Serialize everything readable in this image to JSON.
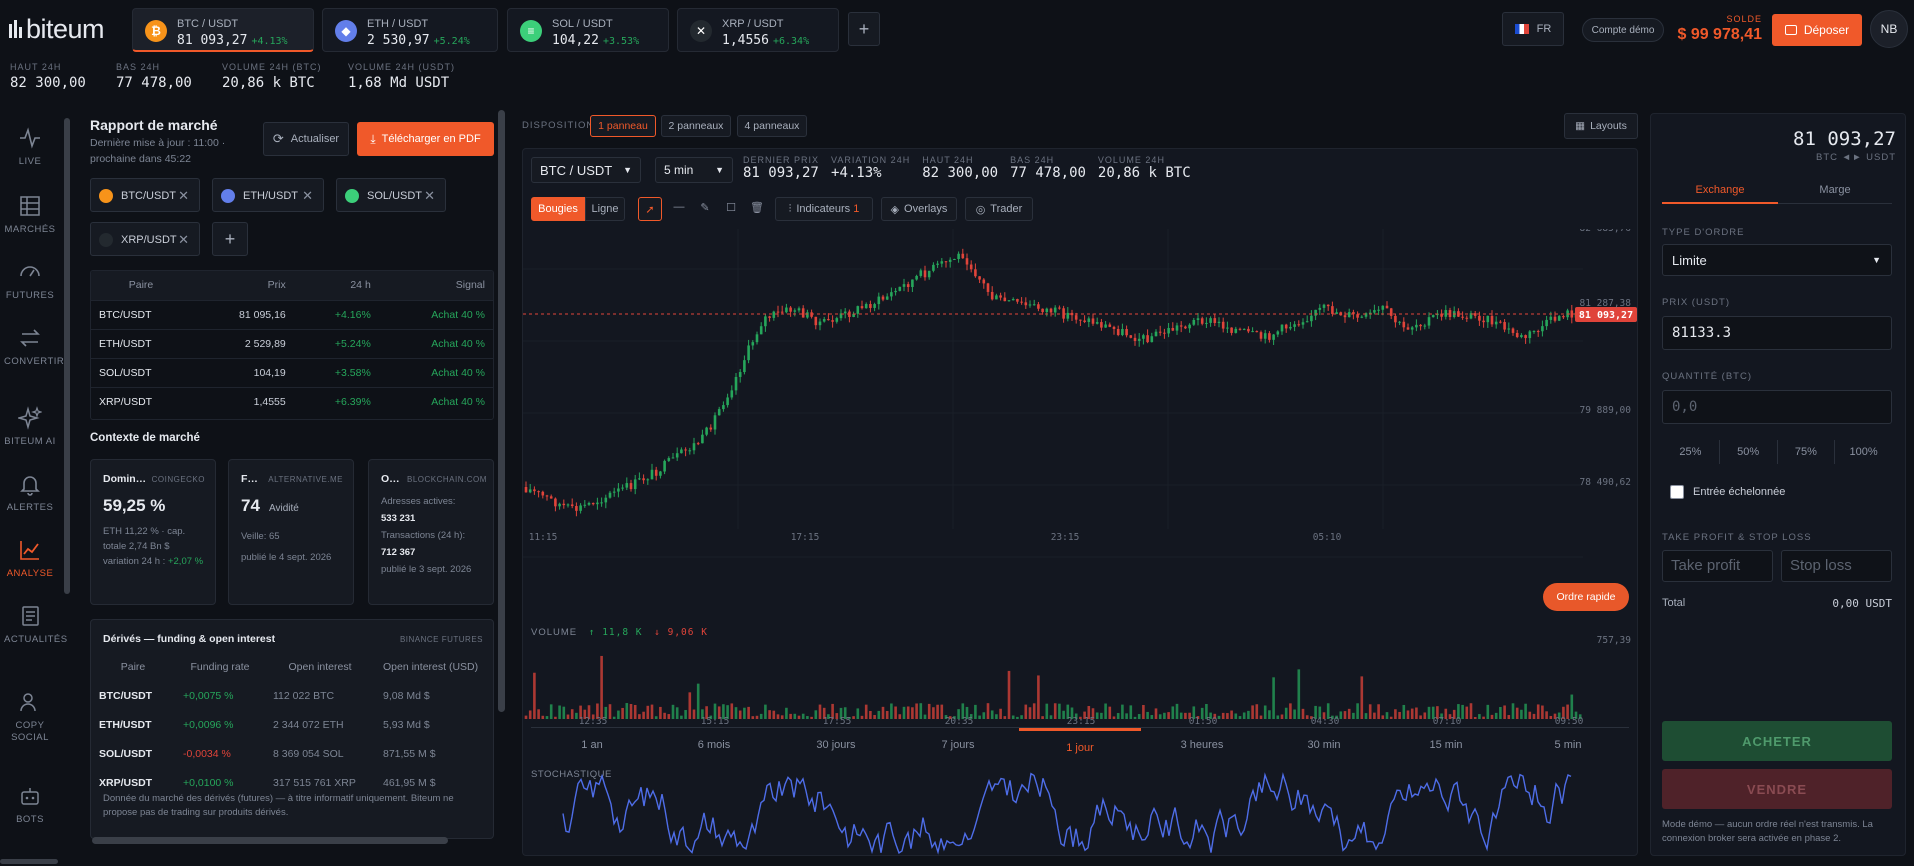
{
  "brand": {
    "logo": "biteum",
    "accent": "#f0592a"
  },
  "tickers": [
    {
      "pair": "BTC / USDT",
      "price": "81 093,27",
      "change": "+4.13%",
      "icon": "bitcoin-icon",
      "color": "#f7931a",
      "glyph": "₿"
    },
    {
      "pair": "ETH / USDT",
      "price": "2 530,97",
      "change": "+5.24%",
      "icon": "ethereum-icon",
      "color": "#627eea",
      "glyph": "◆"
    },
    {
      "pair": "SOL / USDT",
      "price": "104,22",
      "change": "+3.53%",
      "icon": "solana-icon",
      "color": "#3ccf7a",
      "glyph": "≡"
    },
    {
      "pair": "XRP / USDT",
      "price": "1,4556",
      "change": "+6.34%",
      "icon": "xrp-icon",
      "color": "#23292f",
      "glyph": "✕"
    }
  ],
  "header": {
    "lang": "FR",
    "demo_label": "Compte démo",
    "balance_label": "SOLDE",
    "balance": "$ 99 978,41",
    "deposit_label": "Déposer",
    "avatar": "NB"
  },
  "stats": [
    {
      "label": "HAUT 24H",
      "value": "82 300,00"
    },
    {
      "label": "BAS 24H",
      "value": "77 478,00"
    },
    {
      "label": "VOLUME 24H (BTC)",
      "value": "20,86 k BTC"
    },
    {
      "label": "VOLUME 24H (USDT)",
      "value": "1,68 Md USDT"
    }
  ],
  "nav": [
    {
      "label": "LIVE",
      "icon": "pulse-icon"
    },
    {
      "label": "MARCHÉS",
      "icon": "grid-icon"
    },
    {
      "label": "FUTURES",
      "icon": "gauge-icon"
    },
    {
      "label": "CONVERTIR",
      "icon": "swap-icon"
    },
    {
      "label": "BITEUM AI",
      "icon": "sparkle-icon"
    },
    {
      "label": "ALERTES",
      "icon": "bell-icon"
    },
    {
      "label": "ANALYSE",
      "icon": "chart-line-icon"
    },
    {
      "label": "ACTUALITÉS",
      "icon": "news-icon"
    },
    {
      "label": "COPY SOCIAL",
      "icon": "users-icon"
    },
    {
      "label": "BOTS",
      "icon": "robot-icon"
    }
  ],
  "report": {
    "title": "Rapport de marché",
    "subtitle": "Dernière mise à jour : 11:00 · prochaine dans 45:22",
    "refresh_label": "Actualiser",
    "pdf_label": "Télécharger en PDF",
    "chips": [
      "BTC/USDT",
      "ETH/USDT",
      "SOL/USDT",
      "XRP/USDT"
    ],
    "table_headers": [
      "Paire",
      "Prix",
      "24 h",
      "Signal"
    ],
    "rows": [
      {
        "pair": "BTC/USDT",
        "price": "81 095,16",
        "change": "+4.16%",
        "signal": "Achat 40 %"
      },
      {
        "pair": "ETH/USDT",
        "price": "2 529,89",
        "change": "+5.24%",
        "signal": "Achat 40 %"
      },
      {
        "pair": "SOL/USDT",
        "price": "104,19",
        "change": "+3.58%",
        "signal": "Achat 40 %"
      },
      {
        "pair": "XRP/USDT",
        "price": "1,4555",
        "change": "+6.39%",
        "signal": "Achat 40 %"
      }
    ],
    "context_title": "Contexte de marché",
    "cards": [
      {
        "title": "Domin…",
        "source": "COINGECKO",
        "value": "59,25 %",
        "lines": [
          "ETH 11,22 % · cap. totale 2,74 Bn $",
          "variation 24 h :"
        ],
        "delta": "+2,07 %"
      },
      {
        "title": "F…",
        "source": "ALTERNATIVE.ME",
        "value": "74",
        "value_label": "Avidité",
        "lines": [
          "Veille: 65",
          "publié le 4 sept. 2026"
        ]
      },
      {
        "title": "O…",
        "source": "BLOCKCHAIN.COM",
        "addr_label": "Adresses actives:",
        "addr_value": "533 231",
        "tx_label": "Transactions (24 h):",
        "tx_value": "712 367",
        "date": "publié le 3 sept. 2026"
      }
    ],
    "derivatives": {
      "title": "Dérivés — funding & open interest",
      "source": "BINANCE FUTURES",
      "headers": [
        "Paire",
        "Funding rate",
        "Open interest",
        "Open interest (USD)"
      ],
      "rows": [
        {
          "pair": "BTC/USDT",
          "funding": "+0,0075 %",
          "oi": "112 022 BTC",
          "oi_usd": "9,08 Md $"
        },
        {
          "pair": "ETH/USDT",
          "funding": "+0,0096 %",
          "oi": "2 344 072 ETH",
          "oi_usd": "5,93 Md $"
        },
        {
          "pair": "SOL/USDT",
          "funding": "-0,0034 %",
          "oi": "8 369 054 SOL",
          "oi_usd": "871,55 M $"
        },
        {
          "pair": "XRP/USDT",
          "funding": "+0,0100 %",
          "oi": "317 515 761 XRP",
          "oi_usd": "461,95 M $"
        }
      ],
      "note": "Donnée du marché des dérivés (futures) — à titre informatif uniquement. Biteum ne propose pas de trading sur produits dérivés."
    }
  },
  "layout": {
    "label": "DISPOSITION",
    "options": [
      "1 panneau",
      "2 panneaux",
      "4 panneaux"
    ],
    "layouts_label": "Layouts"
  },
  "chart_header": {
    "pair_select": "BTC / USDT",
    "interval_select": "5 min",
    "last_label": "DERNIER PRIX",
    "last": "81 093,27",
    "var_label": "VARIATION 24H",
    "var": "+4.13%",
    "high_label": "HAUT 24H",
    "high": "82 300,00",
    "low_label": "BAS 24H",
    "low": "77 478,00",
    "vol_label": "VOLUME 24H",
    "vol": "20,86 k BTC"
  },
  "chart_toolbar": {
    "candles": "Bougies",
    "line": "Ligne",
    "indicators": "Indicateurs",
    "indicators_count": "1",
    "overlays": "Overlays",
    "trader": "Trader"
  },
  "chart_data": {
    "type": "candlestick",
    "y_ticks": [
      "82 685,76",
      "81 287,38",
      "79 889,00",
      "78 490,62"
    ],
    "x_ticks": [
      "11:15",
      "17:15",
      "23:15",
      "05:10"
    ],
    "current_price_tag": "81 093,27",
    "quick_order": "Ordre rapide",
    "volume_label": "VOLUME",
    "volume_up": "↑ 11,8 K",
    "volume_down": "↓ 9,06 K",
    "volume_max": "757,39",
    "volume_x_ticks": [
      "12:35",
      "15:15",
      "17:55",
      "20:35",
      "23:15",
      "01:50",
      "04:30",
      "07:10",
      "09:50"
    ],
    "ranges": [
      "1 an",
      "6 mois",
      "30 jours",
      "7 jours",
      "1 jour",
      "3 heures",
      "30 min",
      "15 min",
      "5 min"
    ],
    "active_range": "1 jour",
    "indicator_label": "STOCHASTIQUE"
  },
  "order": {
    "price": "81 093,27",
    "pair": "BTC ◄► USDT",
    "tabs": [
      "Exchange",
      "Marge"
    ],
    "type_label": "TYPE D'ORDRE",
    "type_value": "Limite",
    "price_label": "PRIX (USDT)",
    "price_value": "81133.3",
    "qty_label": "QUANTITÉ (BTC)",
    "qty_placeholder": "0,0",
    "pcts": [
      "25%",
      "50%",
      "75%",
      "100%"
    ],
    "staggered_label": "Entrée échelonnée",
    "tpsl_label": "TAKE PROFIT & STOP LOSS",
    "tp_placeholder": "Take profit",
    "sl_placeholder": "Stop loss",
    "total_label": "Total",
    "total_value": "0,00 USDT",
    "buy_label": "ACHETER",
    "sell_label": "VENDRE",
    "note": "Mode démo — aucun ordre réel n'est transmis. La connexion broker sera activée en phase 2."
  }
}
